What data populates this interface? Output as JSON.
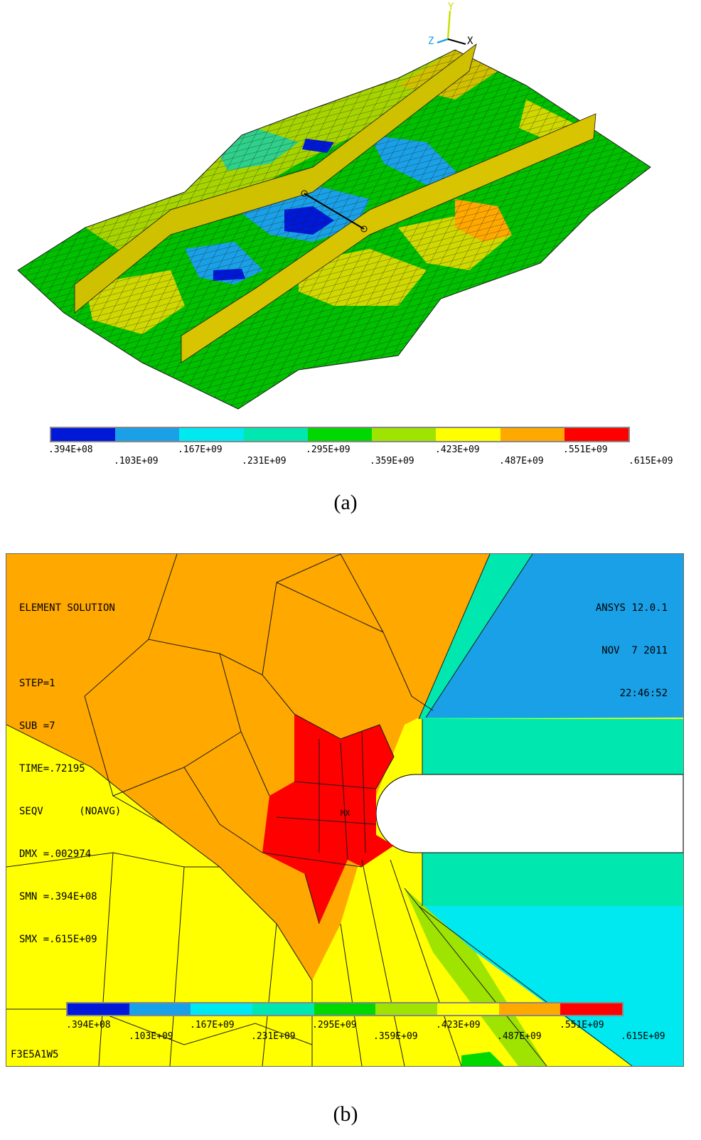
{
  "panel_a": {
    "caption": "(a)",
    "triad": {
      "y": "Y",
      "z": "Z",
      "x": "X"
    },
    "legend_labels": [
      ".394E+08",
      ".103E+09",
      ".167E+09",
      ".231E+09",
      ".295E+09",
      ".359E+09",
      ".423E+09",
      ".487E+09",
      ".551E+09",
      ".615E+09"
    ]
  },
  "panel_b": {
    "caption": "(b)",
    "info_lines": [
      "ELEMENT SOLUTION",
      "",
      "STEP=1",
      "SUB =7",
      "TIME=.72195",
      "SEQV      (NOAVG)",
      "DMX =.002974",
      "SMN =.394E+08",
      "SMX =.615E+09"
    ],
    "ansys_lines": [
      "ANSYS 12.0.1",
      "NOV  7 2011",
      "22:46:52"
    ],
    "mx_label": "MX",
    "file_label": "F3E5A1W5",
    "legend_labels": [
      ".394E+08",
      ".103E+09",
      ".167E+09",
      ".231E+09",
      ".295E+09",
      ".359E+09",
      ".423E+09",
      ".487E+09",
      ".551E+09",
      ".615E+09"
    ]
  },
  "colors": {
    "legend": [
      "#0018d8",
      "#1aa0e6",
      "#00e8f0",
      "#00e8b0",
      "#00d800",
      "#9ee400",
      "#ffff00",
      "#ffa800",
      "#ff0000"
    ],
    "band_blue": "#0018d8",
    "band_lightblue": "#1aa0e6",
    "band_cyan": "#00e8f0",
    "band_aqua": "#00e8b0",
    "band_green": "#00d800",
    "band_lime": "#9ee400",
    "band_yellow": "#ffff00",
    "band_orange": "#ffa800",
    "band_red": "#ff0000"
  }
}
